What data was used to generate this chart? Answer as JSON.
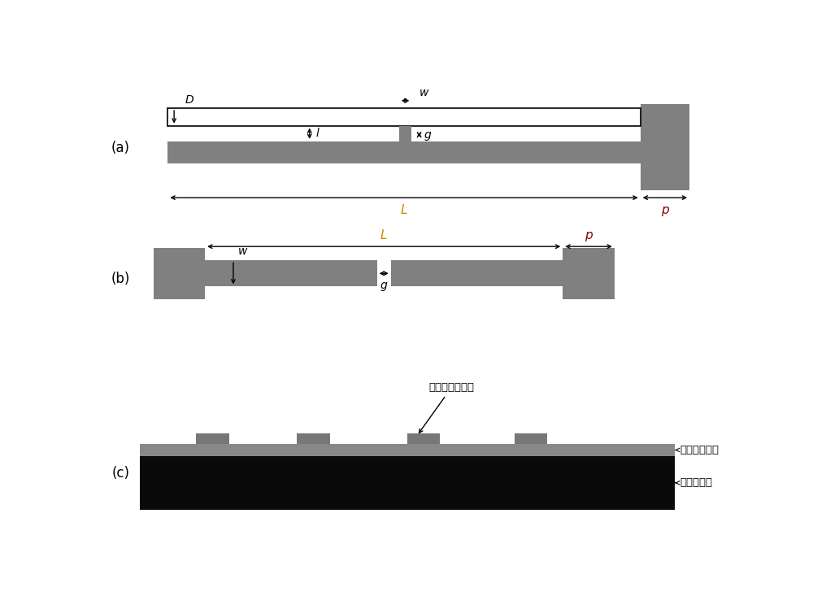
{
  "bg_color": "#ffffff",
  "gray": "#808080",
  "black": "#000000",
  "orange": "#cc8800",
  "dark_red": "#880000",
  "fig_width": 10.0,
  "fig_height": 7.49,
  "panel_a": "(a)",
  "panel_b": "(b)",
  "panel_c": "(c)",
  "ann_c1": "光电导天线单元",
  "ann_c2": "砵化镁外延层",
  "ann_c3": "砵化镁沉底",
  "label_D": "D",
  "label_w": "w",
  "label_l": "l",
  "label_g": "g",
  "label_L": "L",
  "label_p": "p"
}
